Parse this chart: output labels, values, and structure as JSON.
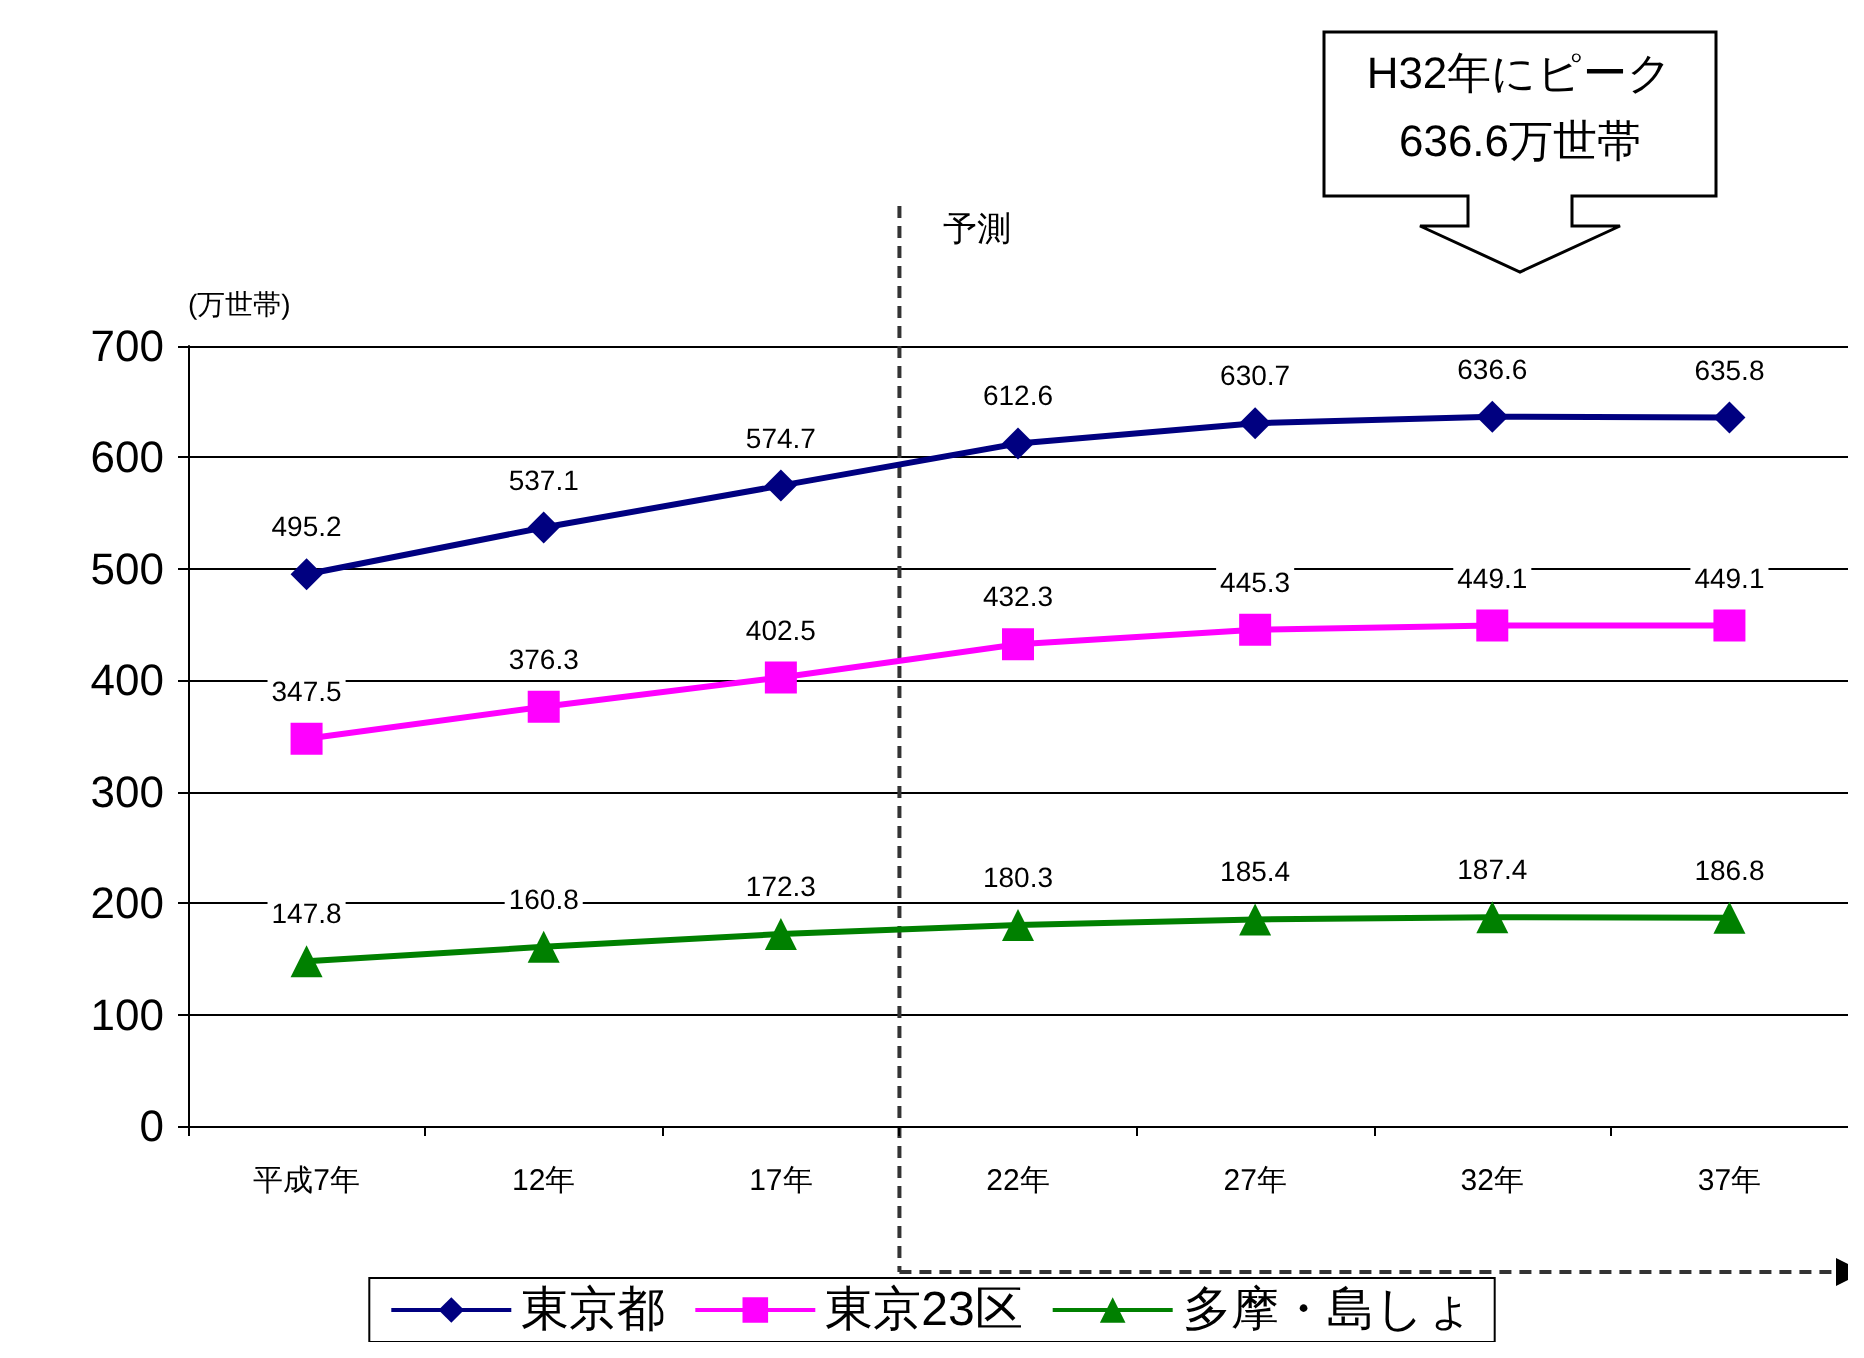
{
  "chart_data": {
    "type": "line",
    "ylabel": "(万世帯)",
    "categories": [
      "平成7年",
      "12年",
      "17年",
      "22年",
      "27年",
      "32年",
      "37年"
    ],
    "series": [
      {
        "name": "東京都",
        "color": "#000080",
        "marker": "diamond",
        "values": [
          495.2,
          537.1,
          574.7,
          612.6,
          630.7,
          636.6,
          635.8
        ]
      },
      {
        "name": "東京23区",
        "color": "#ff00ff",
        "marker": "square",
        "values": [
          347.5,
          376.3,
          402.5,
          432.3,
          445.3,
          449.1,
          449.1
        ]
      },
      {
        "name": "多摩・島しょ",
        "color": "#008000",
        "marker": "triangle",
        "values": [
          147.8,
          160.8,
          172.3,
          180.3,
          185.4,
          187.4,
          186.8
        ]
      }
    ],
    "ylim": [
      0,
      700
    ],
    "yticks": [
      0,
      100,
      200,
      300,
      400,
      500,
      600,
      700
    ],
    "grid": "y",
    "legend": "bottom",
    "data_labels": true,
    "ref_lines": [
      {
        "axis": "x",
        "value": "22年",
        "label": "予測",
        "line_style": "dashed"
      }
    ],
    "annotations": [
      "H32年にピーク\n636.6万世帯"
    ]
  }
}
